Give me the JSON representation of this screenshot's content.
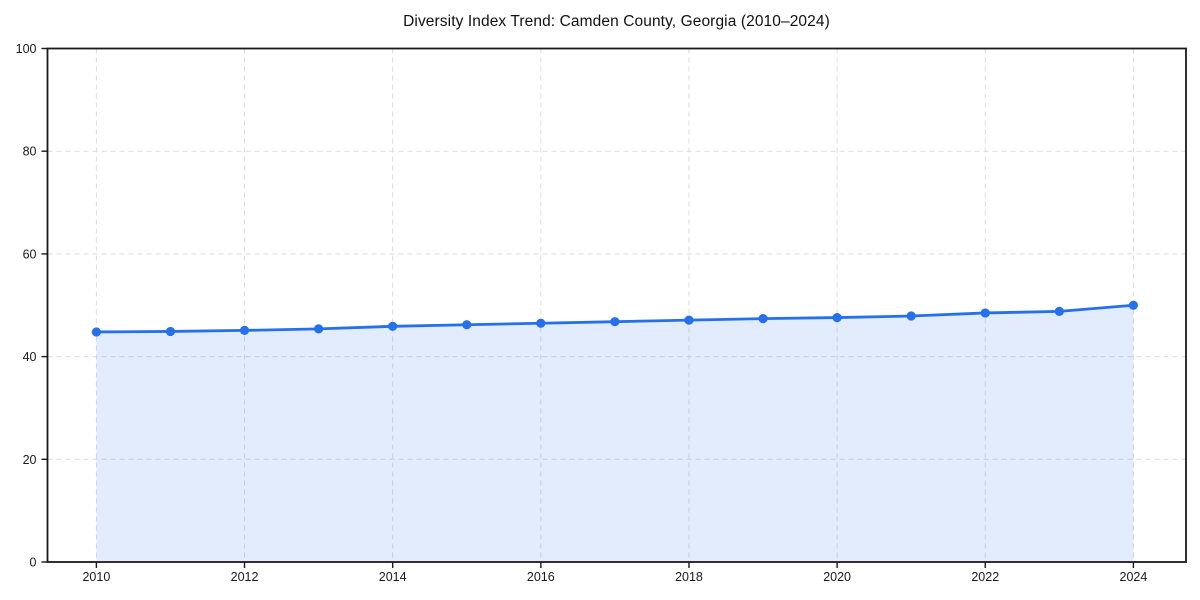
{
  "page": {
    "background_color": "#ffffff",
    "text_color": "#1a1a1a"
  },
  "chart_data": {
    "type": "area",
    "title": "Diversity Index Trend: Camden County, Georgia (2010–2024)",
    "series_name": "Diversity Index",
    "x": [
      2010,
      2011,
      2012,
      2013,
      2014,
      2015,
      2016,
      2017,
      2018,
      2019,
      2020,
      2021,
      2022,
      2023,
      2024
    ],
    "values": [
      44.8,
      44.9,
      45.1,
      45.4,
      45.9,
      46.2,
      46.5,
      46.8,
      47.1,
      47.4,
      47.6,
      47.9,
      48.5,
      48.8,
      50.0
    ],
    "xlabel": "",
    "ylabel": "",
    "xlim": [
      2009.34,
      2024.71
    ],
    "ylim": [
      0,
      100
    ],
    "x_ticks": [
      2010,
      2012,
      2014,
      2016,
      2018,
      2020,
      2022,
      2024
    ],
    "y_ticks": [
      0,
      20,
      40,
      60,
      80,
      100
    ],
    "grid": true,
    "grid_style": "dashed",
    "legend_position": "none",
    "line_color": "#2570EB",
    "fill_color": "rgba(37, 112, 235, 0.13)",
    "grid_color": "#dcdcdc",
    "axis_color": "#1a1a1a",
    "marker": "circle"
  }
}
